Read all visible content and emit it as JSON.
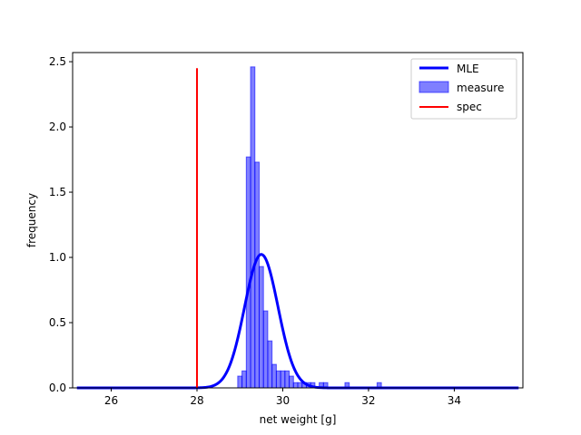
{
  "chart_data": {
    "type": "bar",
    "title": "",
    "xlabel": "net weight [g]",
    "ylabel": "frequency",
    "xlim": [
      25.1,
      35.6
    ],
    "ylim": [
      0,
      2.57
    ],
    "xticks": [
      26,
      28,
      30,
      32,
      34
    ],
    "yticks": [
      0.0,
      0.5,
      1.0,
      1.5,
      2.0,
      2.5
    ],
    "grid": false,
    "legend_position": "top-right",
    "legend": [
      "MLE",
      "measure",
      "spec"
    ],
    "histogram": {
      "name": "measure",
      "color": "#0000ff",
      "bin_width": 0.1,
      "bins": [
        {
          "left": 28.95,
          "value": 0.09
        },
        {
          "left": 29.05,
          "value": 0.13
        },
        {
          "left": 29.15,
          "value": 1.77
        },
        {
          "left": 29.25,
          "value": 2.46
        },
        {
          "left": 29.35,
          "value": 1.73
        },
        {
          "left": 29.45,
          "value": 0.93
        },
        {
          "left": 29.55,
          "value": 0.59
        },
        {
          "left": 29.65,
          "value": 0.36
        },
        {
          "left": 29.75,
          "value": 0.18
        },
        {
          "left": 29.85,
          "value": 0.13
        },
        {
          "left": 29.95,
          "value": 0.13
        },
        {
          "left": 30.05,
          "value": 0.13
        },
        {
          "left": 30.15,
          "value": 0.09
        },
        {
          "left": 30.25,
          "value": 0.04
        },
        {
          "left": 30.35,
          "value": 0.04
        },
        {
          "left": 30.45,
          "value": 0.04
        },
        {
          "left": 30.55,
          "value": 0.04
        },
        {
          "left": 30.65,
          "value": 0.04
        },
        {
          "left": 30.85,
          "value": 0.04
        },
        {
          "left": 30.95,
          "value": 0.04
        },
        {
          "left": 31.45,
          "value": 0.04
        },
        {
          "left": 32.2,
          "value": 0.04
        }
      ]
    },
    "mle_curve": {
      "name": "MLE",
      "color": "#0000ff",
      "distribution": "normal",
      "mean": 29.5,
      "std": 0.39,
      "x_range": [
        25.2,
        35.5
      ]
    },
    "spec_line": {
      "name": "spec",
      "color": "#ff0000",
      "x": 28.0,
      "y_range": [
        0,
        2.45
      ]
    }
  }
}
